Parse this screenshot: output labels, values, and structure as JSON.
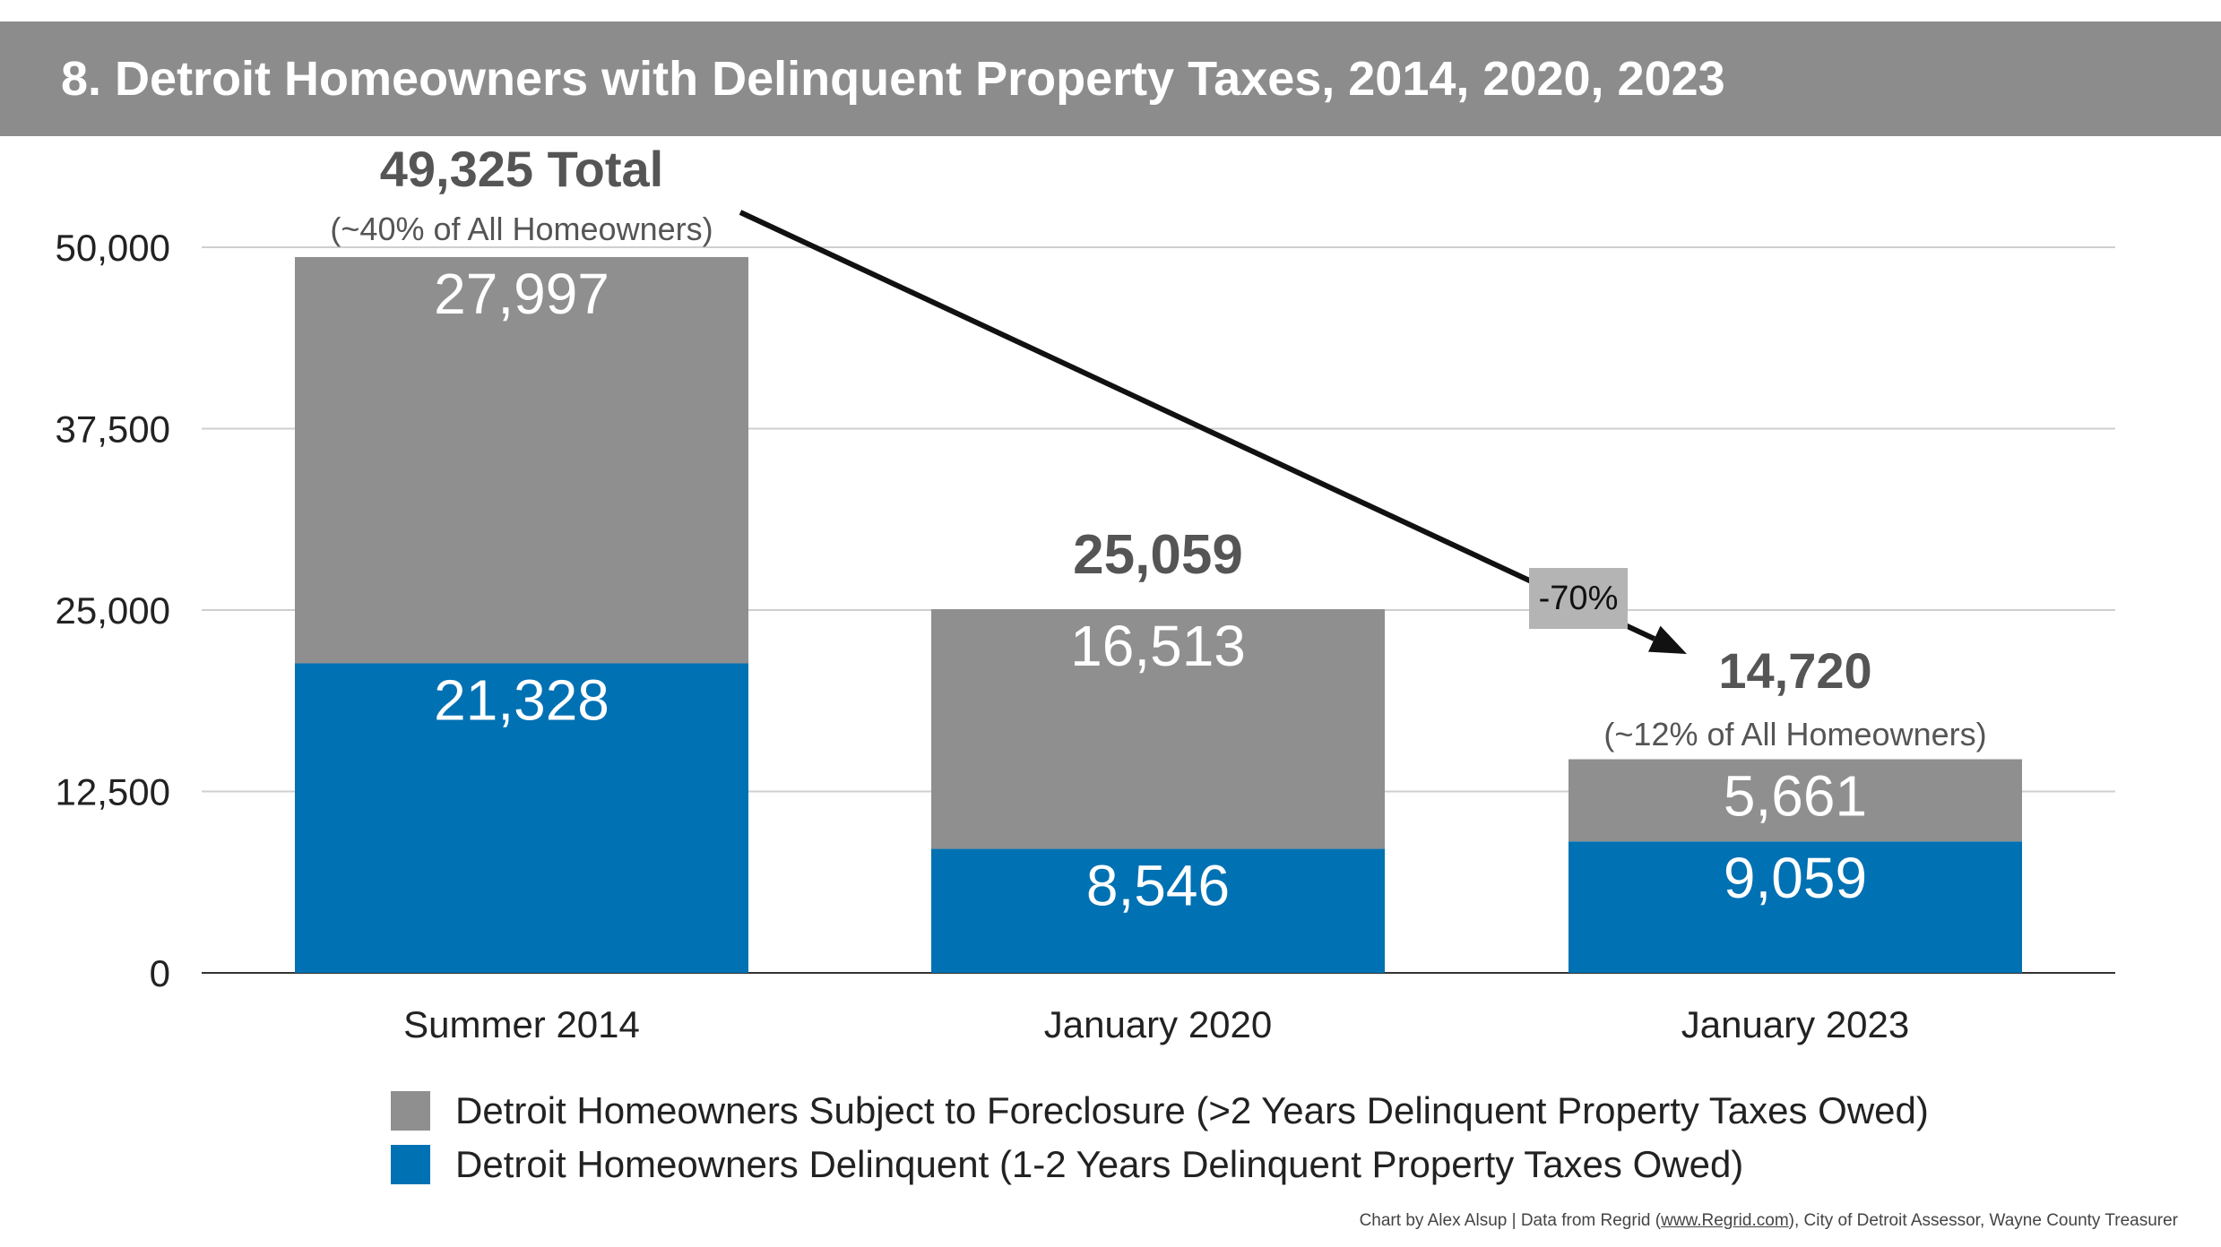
{
  "title": "8. Detroit Homeowners with Delinquent Property Taxes, 2014, 2020, 2023",
  "chart_data": {
    "type": "bar",
    "stacked": true,
    "categories": [
      "Summer 2014",
      "January 2020",
      "January 2023"
    ],
    "series": [
      {
        "name": "Detroit Homeowners Delinquent (1-2 Years Delinquent Property Taxes Owed)",
        "values": [
          21328,
          8546,
          9059
        ],
        "color": "#0071b3"
      },
      {
        "name": "Detroit Homeowners Subject to Foreclosure (>2 Years Delinquent Property Taxes Owed)",
        "values": [
          27997,
          16513,
          5661
        ],
        "color": "#8f8f8f"
      }
    ],
    "segment_labels": [
      {
        "delinquent": "21,328",
        "foreclosure": "27,997"
      },
      {
        "delinquent": "8,546",
        "foreclosure": "16,513"
      },
      {
        "delinquent": "9,059",
        "foreclosure": "5,661"
      }
    ],
    "totals": [
      49325,
      25059,
      14720
    ],
    "total_labels": [
      "49,325 Total",
      "25,059",
      "14,720"
    ],
    "total_sublabels": [
      "(~40% of All Homeowners)",
      "",
      "(~12% of All Homeowners)"
    ],
    "yticks": [
      0,
      12500,
      25000,
      37500,
      50000
    ],
    "ytick_labels": [
      "0",
      "12,500",
      "25,000",
      "37,500",
      "50,000"
    ],
    "ylim": [
      0,
      50000
    ],
    "grid": true,
    "legend_position": "bottom",
    "annotation": {
      "label": "-70%",
      "from": "Summer 2014",
      "to": "January 2023"
    }
  },
  "legend": [
    {
      "label": "Detroit Homeowners Subject to Foreclosure (>2 Years Delinquent Property Taxes Owed)",
      "color": "#8f8f8f"
    },
    {
      "label": "Detroit Homeowners Delinquent  (1-2 Years Delinquent Property Taxes Owed)",
      "color": "#0071b3"
    }
  ],
  "credit": {
    "prefix": "Chart by Alex Alsup | Data from Regrid (",
    "link": "www.Regrid.com",
    "suffix": "), City of Detroit Assessor, Wayne County Treasurer"
  },
  "colors": {
    "title_bar": "#8c8c8c",
    "delinquent": "#0071b3",
    "foreclosure": "#8f8f8f",
    "annotation_box": "#b4b4b4"
  }
}
